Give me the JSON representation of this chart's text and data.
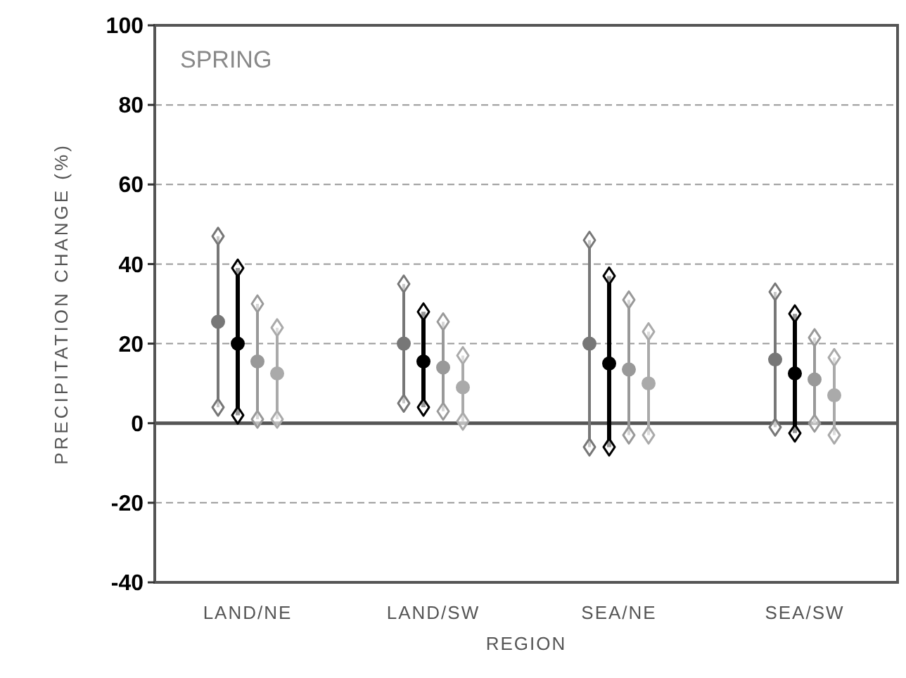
{
  "chart_data": {
    "type": "scatter",
    "xlabel": "REGION",
    "ylabel": "PRECIPITATION CHANGE (%)",
    "annotations": [
      "SPRING"
    ],
    "categories": [
      "LAND/NE",
      "LAND/SW",
      "SEA/NE",
      "SEA/SW"
    ],
    "series": [
      {
        "color": "#777777",
        "values": [
          25.5,
          20,
          20,
          16
        ],
        "errors": [
          [
            4,
            47
          ],
          [
            5,
            35
          ],
          [
            -6,
            46
          ],
          [
            -1,
            33
          ]
        ]
      },
      {
        "color": "#000000",
        "values": [
          20,
          15.5,
          15,
          12.5
        ],
        "errors": [
          [
            2,
            39
          ],
          [
            4,
            28
          ],
          [
            -6,
            37
          ],
          [
            -2.5,
            27.5
          ]
        ]
      },
      {
        "color": "#999999",
        "values": [
          15.5,
          14,
          13.5,
          11
        ],
        "errors": [
          [
            1,
            30
          ],
          [
            3,
            25.5
          ],
          [
            -3,
            31
          ],
          [
            0,
            21.5
          ]
        ]
      },
      {
        "color": "#aaaaaa",
        "values": [
          12.5,
          9,
          10,
          7
        ],
        "errors": [
          [
            1,
            24
          ],
          [
            0.5,
            17
          ],
          [
            -3,
            23
          ],
          [
            -3,
            16.5
          ]
        ]
      }
    ],
    "ylim": [
      -40,
      100
    ],
    "yticks": [
      -40,
      -20,
      0,
      20,
      40,
      60,
      80,
      100
    ],
    "grid": "y",
    "marker": "circle",
    "ref_lines": [
      {
        "axis": "y",
        "value": 0,
        "color": "#555555"
      }
    ]
  }
}
